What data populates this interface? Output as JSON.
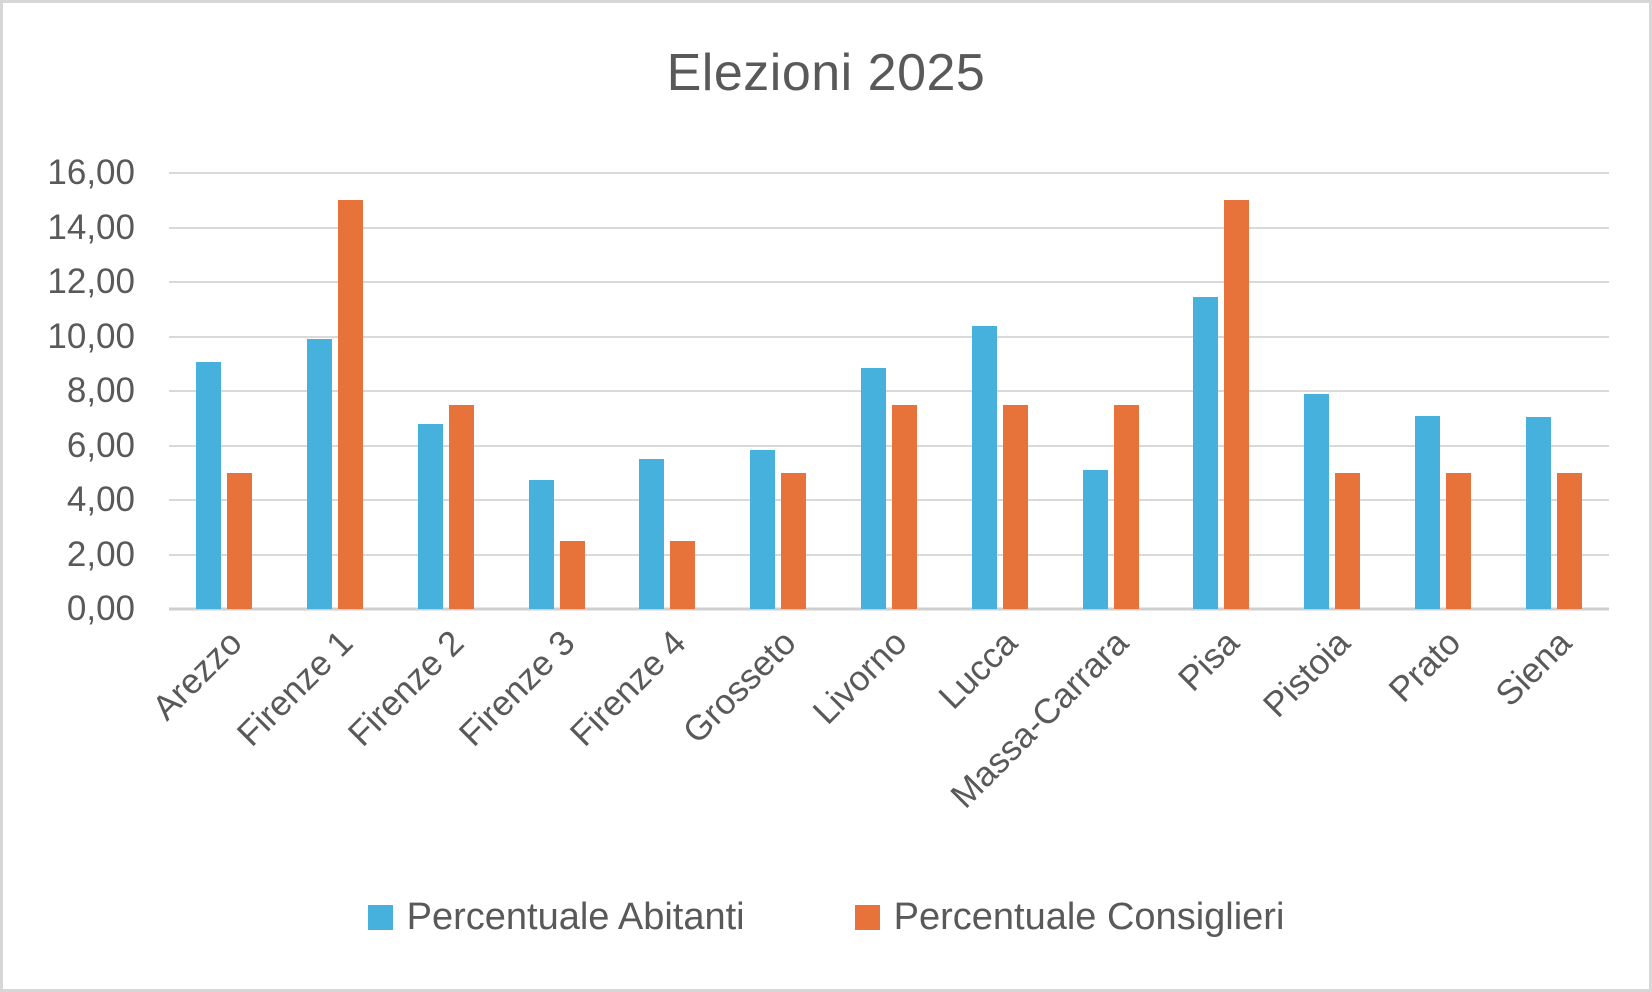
{
  "title": "Elezioni 2025",
  "colors": {
    "series_blue": "#47B1DE",
    "series_orange": "#E7733A",
    "text_gray": "#595959",
    "gridline": "#D9D9D9",
    "axis_line": "#CFCFCF",
    "background": "#FFFFFF",
    "frame_border": "#D7D7D7"
  },
  "chart_data": {
    "type": "bar",
    "title": "Elezioni 2025",
    "xlabel": "",
    "ylabel": "",
    "grid": true,
    "legend_position": "bottom",
    "ylim": [
      0,
      16
    ],
    "ytick_step": 2,
    "ytick_labels_desc": [
      "16,00",
      "14,00",
      "12,00",
      "10,00",
      "8,00",
      "6,00",
      "4,00",
      "2,00",
      "0,00"
    ],
    "decimal_format": "italian-comma",
    "categories": [
      "Arezzo",
      "Firenze 1",
      "Firenze 2",
      "Firenze 3",
      "Firenze 4",
      "Grosseto",
      "Livorno",
      "Lucca",
      "Massa-Carrara",
      "Pisa",
      "Pistoia",
      "Prato",
      "Siena"
    ],
    "series": [
      {
        "name": "Percentuale Abitanti",
        "color": "#47B1DE",
        "values": [
          9.05,
          9.9,
          6.8,
          4.75,
          5.5,
          5.85,
          8.85,
          10.4,
          5.1,
          11.45,
          7.9,
          7.1,
          7.05
        ]
      },
      {
        "name": "Percentuale Consiglieri",
        "color": "#E7733A",
        "values": [
          5.0,
          15.0,
          7.5,
          2.5,
          2.5,
          5.0,
          7.5,
          7.5,
          7.5,
          15.0,
          5.0,
          5.0,
          5.0
        ]
      }
    ]
  }
}
